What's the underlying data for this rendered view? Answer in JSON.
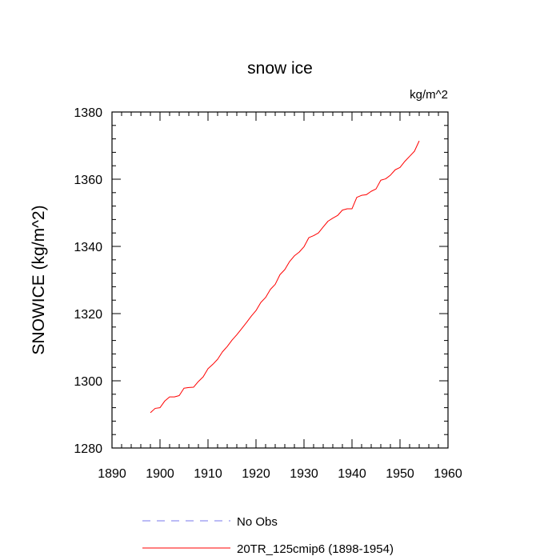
{
  "chart_data": {
    "type": "line",
    "title": "snow ice",
    "units_label": "kg/m^2",
    "ylabel": "SNOWICE  (kg/m^2)",
    "xlim": [
      1890,
      1960
    ],
    "ylim": [
      1280,
      1380
    ],
    "x_ticks": [
      1890,
      1900,
      1910,
      1920,
      1930,
      1940,
      1950,
      1960
    ],
    "y_ticks": [
      1280,
      1300,
      1320,
      1340,
      1360,
      1380
    ],
    "grid": false,
    "legend_position": "bottom",
    "legend": [
      {
        "label": "No Obs",
        "color": "#7777ee",
        "style": "dashed"
      },
      {
        "label": "20TR_125cmip6 (1898-1954)",
        "color": "#ff0000",
        "style": "solid"
      }
    ],
    "series": [
      {
        "color": "#ff0000",
        "x": [
          1898,
          1899,
          1900,
          1901,
          1902,
          1903,
          1904,
          1905,
          1906,
          1907,
          1908,
          1909,
          1910,
          1911,
          1912,
          1913,
          1914,
          1915,
          1916,
          1917,
          1918,
          1919,
          1920,
          1921,
          1922,
          1923,
          1924,
          1925,
          1926,
          1927,
          1928,
          1929,
          1930,
          1931,
          1932,
          1933,
          1934,
          1935,
          1936,
          1937,
          1938,
          1939,
          1940,
          1941,
          1942,
          1943,
          1944,
          1945,
          1946,
          1947,
          1948,
          1949,
          1950,
          1951,
          1952,
          1953,
          1954
        ],
        "values": [
          1290.5,
          1291.8,
          1292.0,
          1294.0,
          1295.2,
          1295.2,
          1295.6,
          1297.8,
          1298.0,
          1298.1,
          1299.8,
          1301.2,
          1303.6,
          1304.9,
          1306.4,
          1308.6,
          1310.2,
          1312.1,
          1313.7,
          1315.5,
          1317.3,
          1319.2,
          1320.9,
          1323.3,
          1324.8,
          1327.2,
          1328.7,
          1331.6,
          1333.1,
          1335.5,
          1337.2,
          1338.3,
          1339.9,
          1342.6,
          1343.2,
          1344.0,
          1345.8,
          1347.5,
          1348.4,
          1349.2,
          1350.8,
          1351.2,
          1351.2,
          1354.6,
          1355.2,
          1355.4,
          1356.4,
          1357.1,
          1359.7,
          1360.1,
          1361.2,
          1362.8,
          1363.5,
          1365.3,
          1366.8,
          1368.3,
          1371.4
        ]
      }
    ]
  }
}
